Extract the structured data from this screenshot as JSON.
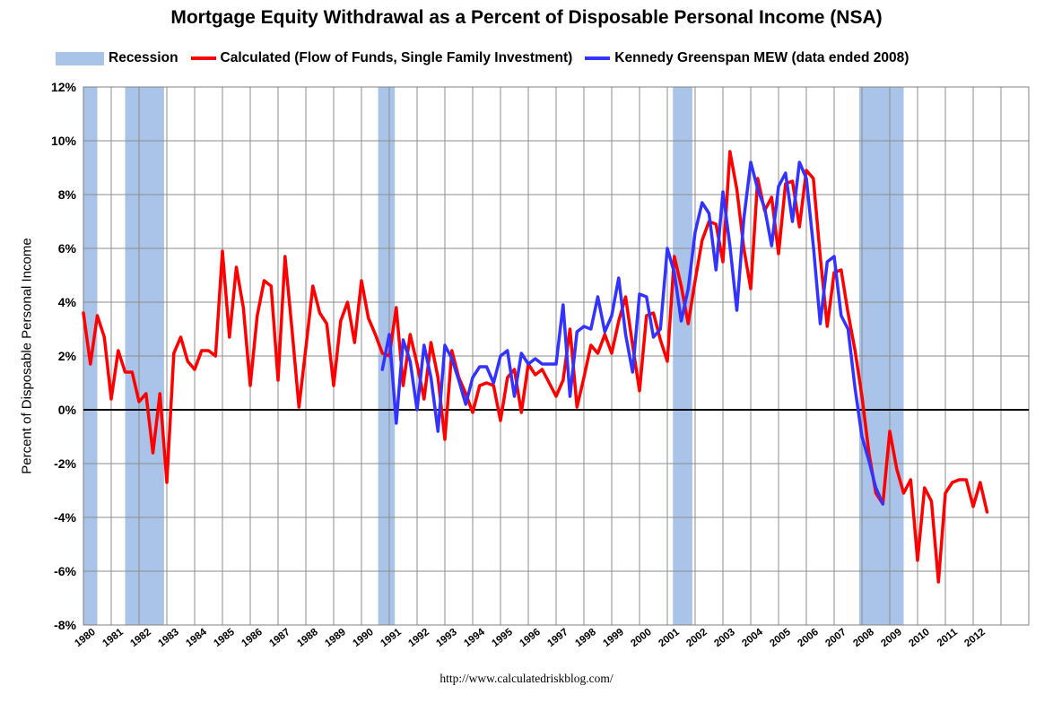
{
  "chart_data": {
    "type": "line",
    "title": "Mortgage Equity Withdrawal as a Percent of Disposable Personal Income (NSA)",
    "ylabel": "Percent of Disposable Personal Income",
    "ylim": [
      -8,
      12
    ],
    "xlim": [
      1980,
      2014
    ],
    "y_ticks": [
      "12%",
      "10%",
      "8%",
      "6%",
      "4%",
      "2%",
      "0%",
      "-2%",
      "-4%",
      "-6%",
      "-8%"
    ],
    "x_tick_labels": [
      "1980",
      "1981",
      "1982",
      "1983",
      "1984",
      "1985",
      "1986",
      "1987",
      "1988",
      "1989",
      "1990",
      "1991",
      "1992",
      "1993",
      "1994",
      "1995",
      "1996",
      "1997",
      "1998",
      "1999",
      "2000",
      "2001",
      "2002",
      "2003",
      "2004",
      "2005",
      "2006",
      "2007",
      "2008",
      "2009",
      "2010",
      "2011",
      "2012"
    ],
    "grid": true,
    "legend_position": "top",
    "source": "http://www.calculatedriskblog.com/",
    "legend": [
      {
        "label": "Recession",
        "kind": "box",
        "color": "#a9c4e8"
      },
      {
        "label": "Calculated (Flow of Funds, Single Family Investment)",
        "kind": "line",
        "color": "#ff0000"
      },
      {
        "label": "Kennedy Greenspan MEW (data ended 2008)",
        "kind": "line",
        "color": "#3333ff"
      }
    ],
    "recessions": [
      [
        1980.0,
        1980.5
      ],
      [
        1981.5,
        1982.9
      ],
      [
        1990.6,
        1991.2
      ],
      [
        2001.2,
        2001.9
      ],
      [
        2007.9,
        2009.5
      ]
    ],
    "series": [
      {
        "name": "Calculated (Flow of Funds, Single Family Investment)",
        "color": "#ff0000",
        "x": [
          1980.0,
          1980.25,
          1980.5,
          1980.75,
          1981.0,
          1981.25,
          1981.5,
          1981.75,
          1982.0,
          1982.25,
          1982.5,
          1982.75,
          1983.0,
          1983.25,
          1983.5,
          1983.75,
          1984.0,
          1984.25,
          1984.5,
          1984.75,
          1985.0,
          1985.25,
          1985.5,
          1985.75,
          1986.0,
          1986.25,
          1986.5,
          1986.75,
          1987.0,
          1987.25,
          1987.5,
          1987.75,
          1988.0,
          1988.25,
          1988.5,
          1988.75,
          1989.0,
          1989.25,
          1989.5,
          1989.75,
          1990.0,
          1990.25,
          1990.5,
          1990.75,
          1991.0,
          1991.25,
          1991.5,
          1991.75,
          1992.0,
          1992.25,
          1992.5,
          1992.75,
          1993.0,
          1993.25,
          1993.5,
          1993.75,
          1994.0,
          1994.25,
          1994.5,
          1994.75,
          1995.0,
          1995.25,
          1995.5,
          1995.75,
          1996.0,
          1996.25,
          1996.5,
          1996.75,
          1997.0,
          1997.25,
          1997.5,
          1997.75,
          1998.0,
          1998.25,
          1998.5,
          1998.75,
          1999.0,
          1999.25,
          1999.5,
          1999.75,
          2000.0,
          2000.25,
          2000.5,
          2000.75,
          2001.0,
          2001.25,
          2001.5,
          2001.75,
          2002.0,
          2002.25,
          2002.5,
          2002.75,
          2003.0,
          2003.25,
          2003.5,
          2003.75,
          2004.0,
          2004.25,
          2004.5,
          2004.75,
          2005.0,
          2005.25,
          2005.5,
          2005.75,
          2006.0,
          2006.25,
          2006.5,
          2006.75,
          2007.0,
          2007.25,
          2007.5,
          2007.75,
          2008.0,
          2008.25,
          2008.5,
          2008.75,
          2009.0,
          2009.25,
          2009.5,
          2009.75,
          2010.0,
          2010.25,
          2010.5,
          2010.75,
          2011.0,
          2011.25,
          2011.5,
          2011.75,
          2012.0,
          2012.25,
          2012.5
        ],
        "values": [
          3.6,
          1.7,
          3.5,
          2.7,
          0.4,
          2.2,
          1.4,
          1.4,
          0.3,
          0.6,
          -1.6,
          0.6,
          -2.7,
          2.1,
          2.7,
          1.8,
          1.5,
          2.2,
          2.2,
          2.0,
          5.9,
          2.7,
          5.3,
          3.8,
          0.9,
          3.5,
          4.8,
          4.6,
          1.1,
          5.7,
          3.0,
          0.1,
          2.3,
          4.6,
          3.6,
          3.2,
          0.9,
          3.3,
          4.0,
          2.5,
          4.8,
          3.4,
          2.8,
          2.1,
          2.0,
          3.8,
          0.9,
          2.8,
          1.7,
          0.4,
          2.5,
          1.2,
          -1.1,
          2.2,
          1.2,
          0.6,
          -0.1,
          0.9,
          1.0,
          0.9,
          -0.4,
          1.2,
          1.5,
          -0.1,
          1.7,
          1.3,
          1.5,
          1.0,
          0.5,
          1.1,
          3.0,
          0.1,
          1.2,
          2.4,
          2.1,
          2.8,
          2.1,
          3.3,
          4.2,
          2.4,
          0.7,
          3.5,
          3.6,
          2.6,
          1.8,
          5.7,
          4.6,
          3.2,
          4.8,
          6.3,
          7.0,
          6.9,
          5.5,
          9.6,
          8.2,
          6.0,
          4.5,
          8.6,
          7.4,
          7.9,
          5.8,
          8.4,
          8.5,
          6.8,
          8.9,
          8.6,
          5.7,
          3.1,
          5.1,
          5.2,
          3.6,
          2.2,
          0.5,
          -1.6,
          -3.1,
          -3.5,
          -0.8,
          -2.2,
          -3.1,
          -2.6,
          -5.6,
          -2.9,
          -3.4,
          -6.4,
          -3.1,
          -2.7,
          -2.6,
          -2.6,
          -3.6,
          -2.7,
          -3.8
        ]
      },
      {
        "name": "Kennedy Greenspan MEW (data ended 2008)",
        "color": "#3333ff",
        "x": [
          1990.75,
          1991.0,
          1991.25,
          1991.5,
          1991.75,
          1992.0,
          1992.25,
          1992.5,
          1992.75,
          1993.0,
          1993.25,
          1993.5,
          1993.75,
          1994.0,
          1994.25,
          1994.5,
          1994.75,
          1995.0,
          1995.25,
          1995.5,
          1995.75,
          1996.0,
          1996.25,
          1996.5,
          1996.75,
          1997.0,
          1997.25,
          1997.5,
          1997.75,
          1998.0,
          1998.25,
          1998.5,
          1998.75,
          1999.0,
          1999.25,
          1999.5,
          1999.75,
          2000.0,
          2000.25,
          2000.5,
          2000.75,
          2001.0,
          2001.25,
          2001.5,
          2001.75,
          2002.0,
          2002.25,
          2002.5,
          2002.75,
          2003.0,
          2003.25,
          2003.5,
          2003.75,
          2004.0,
          2004.25,
          2004.5,
          2004.75,
          2005.0,
          2005.25,
          2005.5,
          2005.75,
          2006.0,
          2006.25,
          2006.5,
          2006.75,
          2007.0,
          2007.25,
          2007.5,
          2007.75,
          2008.0,
          2008.25,
          2008.5,
          2008.75
        ],
        "values": [
          1.5,
          2.8,
          -0.5,
          2.6,
          1.8,
          0.0,
          2.4,
          1.2,
          -0.8,
          2.4,
          1.9,
          1.1,
          0.2,
          1.2,
          1.6,
          1.6,
          1.0,
          2.0,
          2.2,
          0.5,
          2.1,
          1.7,
          1.9,
          1.7,
          1.7,
          1.7,
          3.9,
          0.5,
          2.9,
          3.1,
          3.0,
          4.2,
          2.9,
          3.5,
          4.9,
          2.8,
          1.4,
          4.3,
          4.2,
          2.7,
          3.0,
          6.0,
          5.1,
          3.3,
          4.5,
          6.6,
          7.7,
          7.3,
          5.2,
          8.1,
          6.1,
          3.7,
          7.1,
          9.2,
          8.2,
          7.5,
          6.1,
          8.3,
          8.8,
          7.0,
          9.2,
          8.6,
          6.1,
          3.2,
          5.5,
          5.7,
          3.5,
          3.0,
          0.8,
          -1.0,
          -1.9,
          -2.9,
          -3.5
        ]
      }
    ]
  }
}
